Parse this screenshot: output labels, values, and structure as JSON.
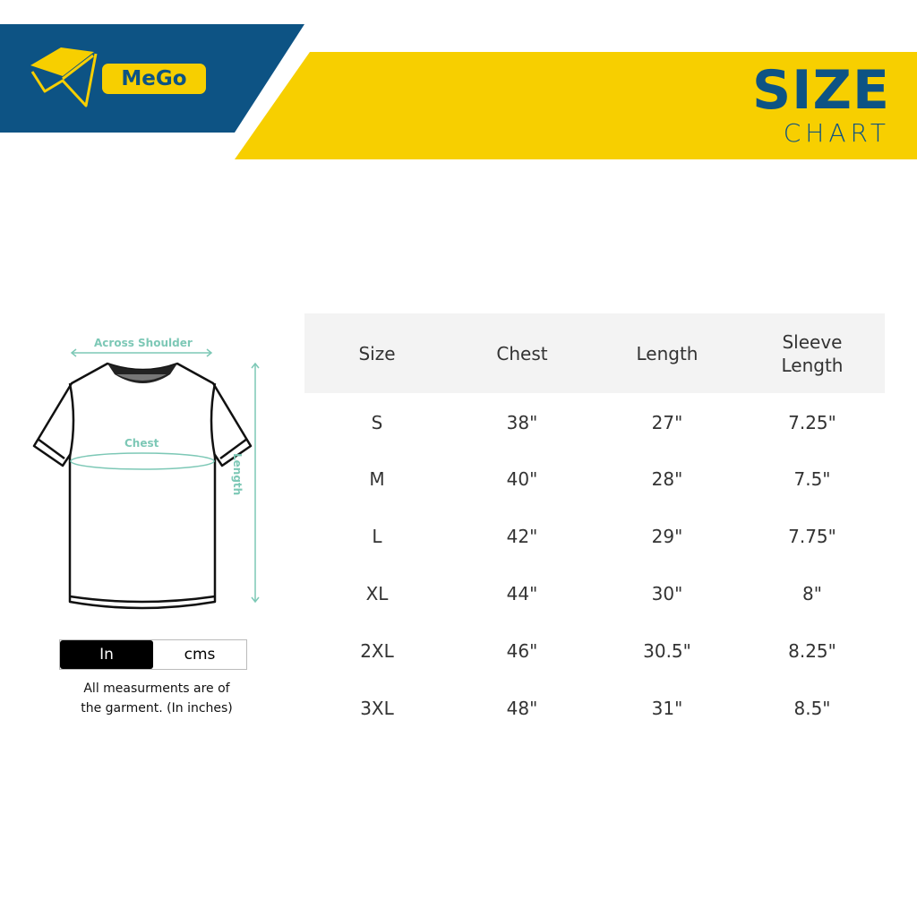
{
  "brand": {
    "name": "MeGo",
    "colors": {
      "blue": "#0d5384",
      "yellow": "#f7cf00"
    }
  },
  "header": {
    "title": "SIZE",
    "subtitle": "CHART"
  },
  "diagram": {
    "across_shoulder": "Across Shoulder",
    "chest": "Chest",
    "length": "Length"
  },
  "units": {
    "options": [
      "In",
      "cms"
    ],
    "selected": "In"
  },
  "note": {
    "line1": "All measurments are of",
    "line2": "the garment. (In inches)"
  },
  "table": {
    "headers": [
      "Size",
      "Chest",
      "Length",
      "Sleeve Length"
    ],
    "rows": [
      [
        "S",
        "38\"",
        "27\"",
        "7.25\""
      ],
      [
        "M",
        "40\"",
        "28\"",
        "7.5\""
      ],
      [
        "L",
        "42\"",
        "29\"",
        "7.75\""
      ],
      [
        "XL",
        "44\"",
        "30\"",
        "8\""
      ],
      [
        "2XL",
        "46\"",
        "30.5\"",
        "8.25\""
      ],
      [
        "3XL",
        "48\"",
        "31\"",
        "8.5\""
      ]
    ]
  }
}
